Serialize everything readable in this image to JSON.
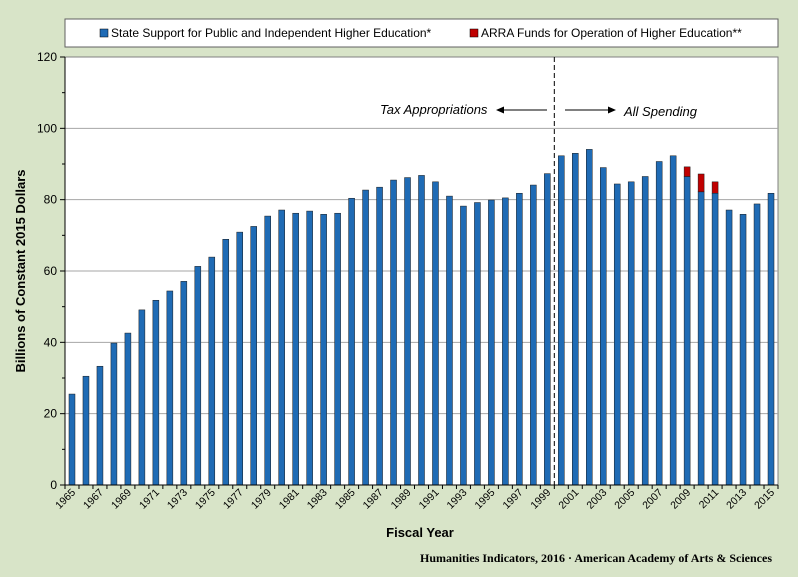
{
  "chart_data": {
    "type": "bar",
    "stacked": true,
    "title": "",
    "xlabel": "Fiscal Year",
    "ylabel": "Billions of Constant 2015 Dollars",
    "ylim": [
      0,
      120
    ],
    "yticks": [
      0,
      20,
      40,
      60,
      80,
      100,
      120
    ],
    "grid": true,
    "legend_position": "top",
    "categories": [
      "1965",
      "1966",
      "1967",
      "1968",
      "1969",
      "1970",
      "1971",
      "1972",
      "1973",
      "1974",
      "1975",
      "1976",
      "1977",
      "1978",
      "1979",
      "1980",
      "1981",
      "1982",
      "1983",
      "1984",
      "1985",
      "1986",
      "1987",
      "1988",
      "1989",
      "1990",
      "1991",
      "1992",
      "1993",
      "1994",
      "1995",
      "1996",
      "1997",
      "1998",
      "1999",
      "2000",
      "2001",
      "2002",
      "2003",
      "2004",
      "2005",
      "2006",
      "2007",
      "2008",
      "2009",
      "2010",
      "2011",
      "2012",
      "2013",
      "2014",
      "2015"
    ],
    "tick_labels": [
      "1965",
      "1967",
      "1969",
      "1971",
      "1973",
      "1975",
      "1977",
      "1979",
      "1981",
      "1983",
      "1985",
      "1987",
      "1989",
      "1991",
      "1993",
      "1995",
      "1997",
      "1999",
      "2001",
      "2003",
      "2005",
      "2007",
      "2009",
      "2011",
      "2013",
      "2015"
    ],
    "series": [
      {
        "name": "State Support for Public and Independent Higher Education*",
        "color": "#1f6bb5",
        "values": [
          25.5,
          30.5,
          33.3,
          39.8,
          42.6,
          49.1,
          51.8,
          54.4,
          57.1,
          61.3,
          63.9,
          68.9,
          70.9,
          72.5,
          75.4,
          77.1,
          76.2,
          76.8,
          75.9,
          76.2,
          80.4,
          82.7,
          83.5,
          85.5,
          86.2,
          86.8,
          85.0,
          81.0,
          78.2,
          79.2,
          79.9,
          80.5,
          81.8,
          84.1,
          87.3,
          92.3,
          93.0,
          94.1,
          89.0,
          84.4,
          85.0,
          86.5,
          90.7,
          92.3,
          86.5,
          82.2,
          81.8,
          77.1,
          75.9,
          78.8,
          81.8
        ]
      },
      {
        "name": "ARRA Funds for Operation of Higher Education**",
        "color": "#c00000",
        "values": [
          0,
          0,
          0,
          0,
          0,
          0,
          0,
          0,
          0,
          0,
          0,
          0,
          0,
          0,
          0,
          0,
          0,
          0,
          0,
          0,
          0,
          0,
          0,
          0,
          0,
          0,
          0,
          0,
          0,
          0,
          0,
          0,
          0,
          0,
          0,
          0,
          0,
          0,
          0,
          0,
          0,
          0,
          0,
          0,
          2.7,
          5.0,
          3.2,
          0,
          0,
          0,
          0
        ]
      }
    ],
    "divider_after": "1999",
    "annotations": {
      "left": "Tax Appropriations",
      "right": "All Spending"
    },
    "source": "Humanities Indicators, 2016 · American Academy of Arts & Sciences"
  }
}
